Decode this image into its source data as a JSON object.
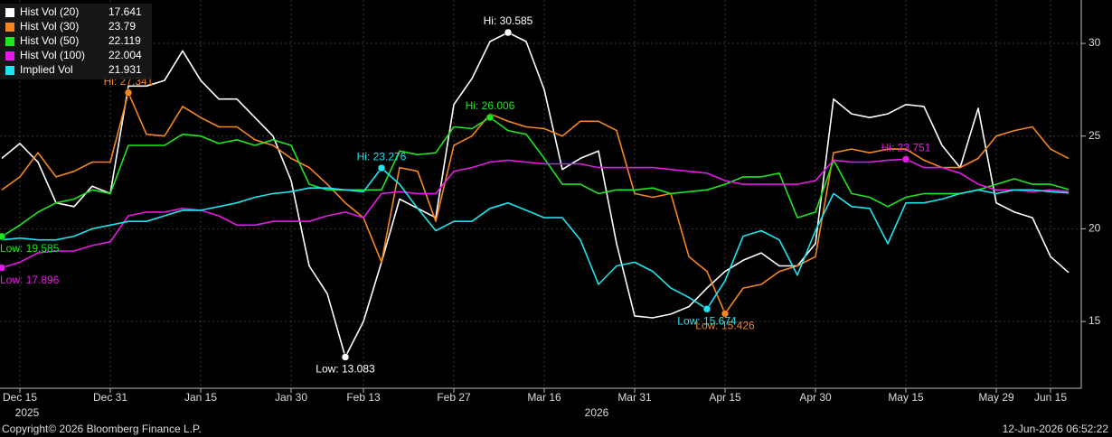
{
  "chart_data": {
    "type": "line",
    "categories": [
      null,
      "Dec 15",
      null,
      null,
      null,
      null,
      "Dec 31",
      null,
      null,
      null,
      null,
      "Jan 15",
      null,
      null,
      null,
      null,
      "Jan 30",
      null,
      null,
      null,
      "Feb 13",
      null,
      null,
      null,
      null,
      "Feb 27",
      null,
      null,
      null,
      null,
      "Mar 16",
      null,
      null,
      null,
      null,
      "Mar 31",
      null,
      null,
      null,
      null,
      "Apr 15",
      null,
      null,
      null,
      null,
      "Apr 30",
      null,
      null,
      null,
      null,
      "May 15",
      null,
      null,
      null,
      null,
      "May 29",
      null,
      null,
      "Jun 15",
      null
    ],
    "year_labels": [
      "2025",
      "2026"
    ],
    "ylim": [
      11.4,
      32.34
    ],
    "yticks": [
      15,
      20,
      25,
      30
    ],
    "grid": true,
    "legend": "top-left",
    "series": [
      {
        "name": "Hist Vol (20)",
        "color": "#ffffff",
        "last_value": 17.641,
        "hi_label": "Hi: 30.585",
        "low_label": "Low: 13.083",
        "values": [
          23.8,
          24.6,
          23.6,
          21.4,
          21.2,
          22.3,
          21.9,
          27.7,
          27.7,
          28.0,
          29.6,
          28.0,
          27.0,
          27.0,
          26.0,
          25.0,
          22.6,
          18.0,
          16.5,
          13.083,
          15.0,
          18.2,
          21.6,
          21.1,
          20.6,
          26.7,
          28.1,
          30.1,
          30.585,
          30.1,
          27.5,
          23.2,
          23.8,
          24.2,
          19.2,
          15.3,
          15.2,
          15.4,
          15.8,
          16.8,
          17.7,
          18.3,
          18.7,
          18.0,
          18.0,
          19.2,
          27.0,
          26.2,
          26.0,
          26.2,
          26.7,
          26.6,
          24.5,
          23.3,
          26.5,
          21.4,
          20.9,
          20.6,
          18.5,
          17.641
        ]
      },
      {
        "name": "Hist Vol (30)",
        "color": "#f5861f",
        "last_value": 23.79,
        "hi_label": "Hi: 27.341",
        "low_label": "Low: 15.426",
        "values": [
          22.1,
          22.8,
          24.1,
          22.8,
          23.1,
          23.6,
          23.6,
          27.341,
          25.1,
          25.0,
          26.6,
          26.0,
          25.5,
          25.5,
          24.8,
          24.5,
          23.8,
          23.3,
          22.4,
          21.4,
          20.6,
          18.2,
          23.3,
          23.1,
          20.4,
          24.5,
          25.0,
          26.2,
          25.8,
          25.5,
          25.4,
          25.0,
          25.8,
          25.8,
          25.3,
          21.9,
          21.7,
          21.9,
          18.5,
          17.7,
          15.426,
          16.8,
          17.0,
          17.7,
          18.0,
          18.5,
          24.1,
          24.3,
          24.1,
          24.3,
          24.3,
          23.7,
          23.3,
          23.3,
          23.8,
          25.0,
          25.3,
          25.5,
          24.3,
          23.79
        ]
      },
      {
        "name": "Hist Vol (50)",
        "color": "#1ee61e",
        "last_value": 22.119,
        "hi_label": "Hi: 26.006",
        "low_label": "Low: 19.585",
        "values": [
          19.585,
          20.2,
          20.9,
          21.4,
          21.6,
          22.1,
          21.9,
          24.5,
          24.5,
          24.5,
          25.1,
          25.0,
          24.6,
          24.8,
          24.5,
          24.8,
          24.5,
          22.4,
          22.1,
          22.1,
          22.1,
          22.1,
          24.2,
          24.0,
          24.1,
          25.5,
          25.4,
          26.006,
          25.3,
          25.1,
          23.8,
          22.4,
          22.4,
          21.9,
          22.1,
          22.1,
          22.2,
          21.9,
          22.0,
          22.1,
          22.4,
          22.8,
          22.8,
          23.0,
          20.6,
          20.9,
          23.7,
          21.9,
          21.7,
          21.2,
          21.7,
          21.9,
          21.9,
          21.9,
          22.1,
          22.4,
          22.7,
          22.4,
          22.4,
          22.119
        ]
      },
      {
        "name": "Hist Vol (100)",
        "color": "#e619e6",
        "last_value": 22.004,
        "hi_label": "Hi: 23.751",
        "low_label": "Low: 17.896",
        "values": [
          17.896,
          18.2,
          18.7,
          18.8,
          18.8,
          19.1,
          19.3,
          20.7,
          20.9,
          20.9,
          21.1,
          21.0,
          20.7,
          20.2,
          20.2,
          20.4,
          20.4,
          20.4,
          20.7,
          20.9,
          20.6,
          21.9,
          22.0,
          21.9,
          21.9,
          23.1,
          23.3,
          23.6,
          23.7,
          23.6,
          23.5,
          23.5,
          23.5,
          23.3,
          23.3,
          23.3,
          23.3,
          23.2,
          23.1,
          23.0,
          22.6,
          22.4,
          22.4,
          22.4,
          22.4,
          22.6,
          23.7,
          23.6,
          23.6,
          23.7,
          23.751,
          23.3,
          23.3,
          23.0,
          22.4,
          22.1,
          22.1,
          22.0,
          22.1,
          22.004
        ]
      },
      {
        "name": "Implied Vol",
        "color": "#1ee6f0",
        "last_value": 21.931,
        "hi_label": "Hi: 23.276",
        "low_label": "Low: 15.674",
        "values": [
          19.4,
          19.5,
          19.4,
          19.4,
          19.6,
          20.0,
          20.2,
          20.4,
          20.4,
          20.7,
          21.0,
          21.0,
          21.2,
          21.4,
          21.7,
          21.9,
          22.0,
          22.2,
          22.2,
          22.1,
          22.0,
          23.276,
          22.4,
          21.1,
          19.9,
          20.4,
          20.4,
          21.1,
          21.4,
          21.0,
          20.6,
          20.6,
          19.4,
          17.0,
          18.0,
          18.2,
          17.7,
          16.8,
          16.3,
          15.674,
          17.2,
          19.6,
          19.9,
          19.4,
          17.5,
          19.9,
          21.9,
          21.2,
          21.1,
          19.2,
          21.4,
          21.4,
          21.6,
          21.9,
          22.1,
          21.9,
          22.1,
          22.1,
          22.0,
          21.931
        ]
      }
    ]
  },
  "footer": {
    "copyright": "Copyright© 2026 Bloomberg Finance L.P.",
    "timestamp": "12-Jun-2026 06:52:22"
  }
}
